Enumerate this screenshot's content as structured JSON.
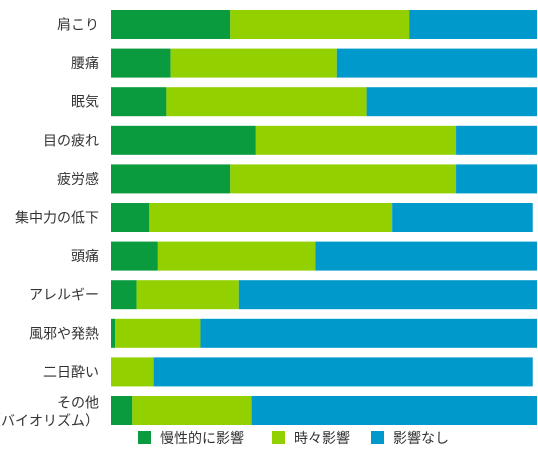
{
  "chart_data": {
    "type": "bar",
    "orientation": "horizontal",
    "stacked": true,
    "categories": [
      "肩こり",
      "腰痛",
      "眠気",
      "目の疲れ",
      "疲労感",
      "集中力の低下",
      "頭痛",
      "アレルギー",
      "風邪や発熱",
      "二日酔い",
      "その他\n（バイオリズム）"
    ],
    "series": [
      {
        "name": "慢性的に影響",
        "color": "#0a9b3e",
        "values": [
          28,
          14,
          13,
          34,
          28,
          9,
          11,
          6,
          1,
          0,
          5
        ]
      },
      {
        "name": "時々影響",
        "color": "#92d000",
        "values": [
          42,
          39,
          47,
          47,
          53,
          57,
          37,
          24,
          20,
          10,
          28
        ]
      },
      {
        "name": "影響なし",
        "color": "#0099cc",
        "values": [
          30,
          47,
          40,
          19,
          19,
          33,
          52,
          70,
          79,
          89,
          67
        ]
      }
    ],
    "xlim": [
      0,
      100
    ],
    "grid": false,
    "legend": "bottom"
  }
}
